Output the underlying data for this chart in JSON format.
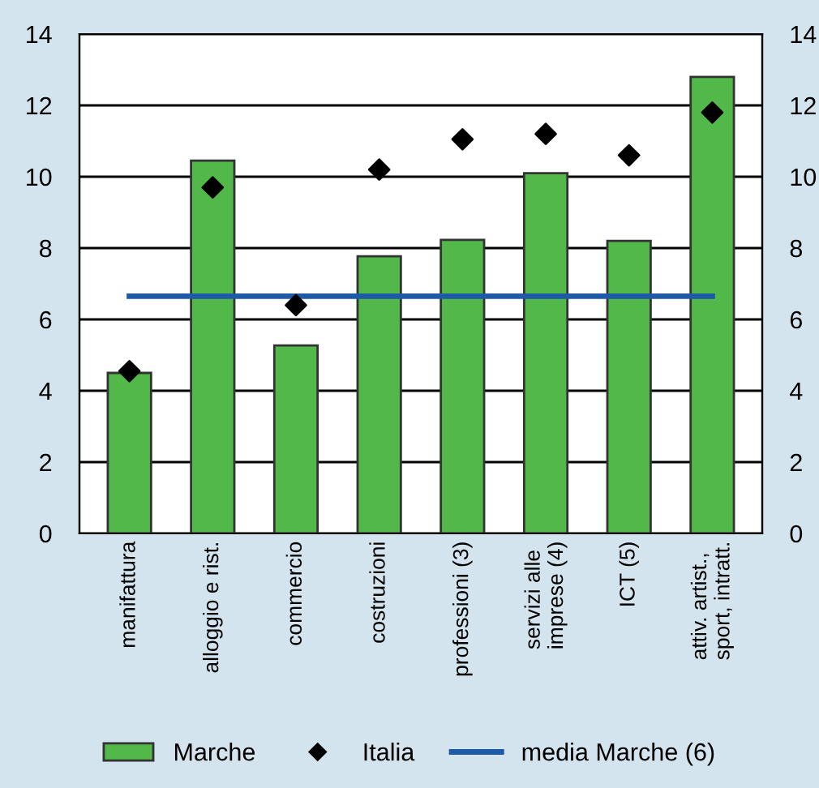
{
  "chart_data": {
    "type": "bar",
    "categories": [
      "manifattura",
      "alloggio e rist.",
      "commercio",
      "costruzioni",
      "professioni (3)",
      "servizi alle\nimprese (4)",
      "ICT (5)",
      "attiv. artist.,\nsport, intratt."
    ],
    "series": [
      {
        "name": "Marche",
        "color": "#52b84a",
        "values": [
          4.5,
          10.45,
          5.27,
          7.77,
          8.23,
          10.1,
          8.2,
          12.8
        ]
      },
      {
        "name": "Italia",
        "type": "scatter",
        "color": "#000000",
        "marker": "diamond",
        "values": [
          4.55,
          9.7,
          6.4,
          10.2,
          11.05,
          11.2,
          10.6,
          11.8
        ]
      },
      {
        "name": "media Marche (6)",
        "type": "line",
        "color": "#1f5aa6",
        "values": [
          6.65,
          6.65,
          6.65,
          6.65,
          6.65,
          6.65,
          6.65,
          6.65
        ]
      }
    ],
    "ylim": [
      0,
      14
    ],
    "yticks": [
      0,
      2,
      4,
      6,
      8,
      10,
      12,
      14
    ],
    "y2lim": [
      0,
      14
    ],
    "y2ticks": [
      0,
      2,
      4,
      6,
      8,
      10,
      12,
      14
    ],
    "grid": "y",
    "legend": "bottom"
  }
}
